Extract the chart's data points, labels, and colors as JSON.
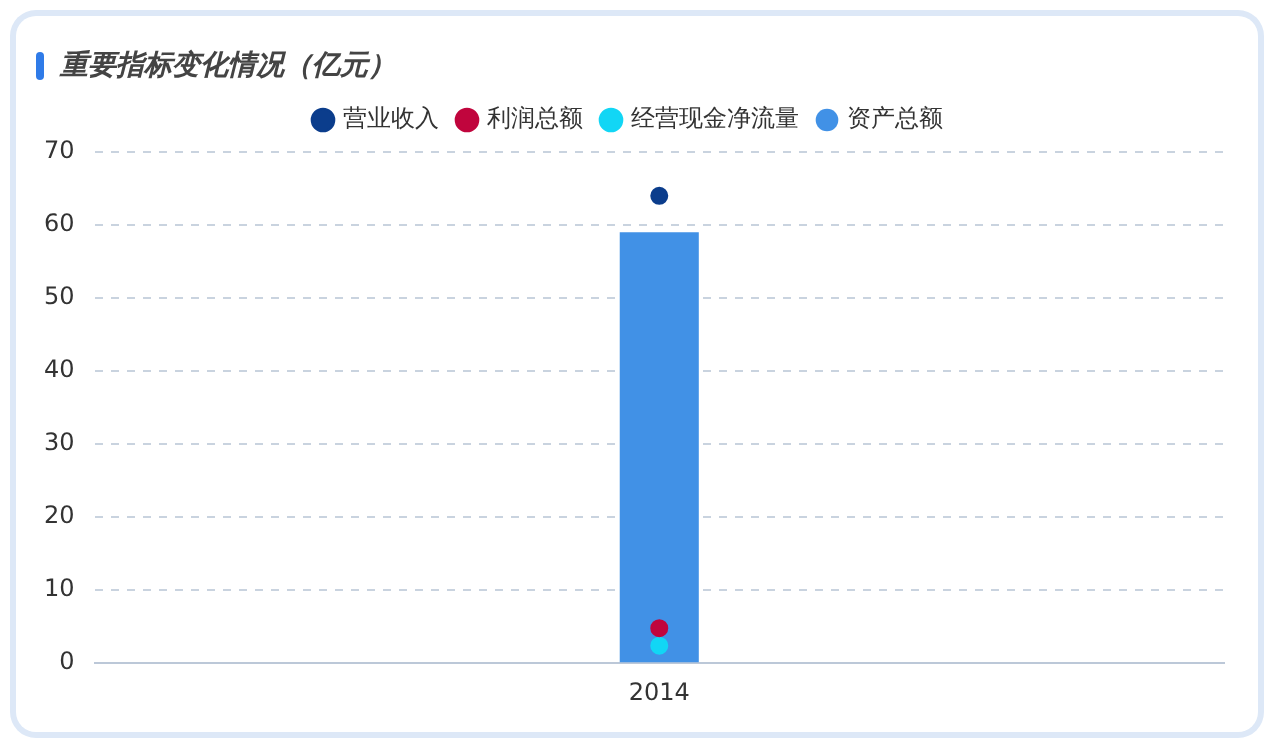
{
  "chart_data": {
    "type": "bar",
    "title": "重要指标变化情况（亿元）",
    "categories": [
      "2014"
    ],
    "series": [
      {
        "name": "资产总额",
        "color": "#4191e6",
        "values": [
          59
        ]
      },
      {
        "name": "营业收入",
        "type": "line",
        "color": "#0b3d8c",
        "values": [
          64
        ]
      },
      {
        "name": "利润总额",
        "type": "line",
        "color": "#c0053d",
        "values": [
          4.8
        ]
      },
      {
        "name": "经营现金净流量",
        "type": "line",
        "color": "#12d6f5",
        "values": [
          2.4
        ]
      }
    ],
    "ylim": [
      0,
      70
    ],
    "yticks": [
      0,
      10,
      20,
      30,
      40,
      50,
      60,
      70
    ],
    "grid": "y",
    "legend": "top",
    "marker": "circle"
  }
}
